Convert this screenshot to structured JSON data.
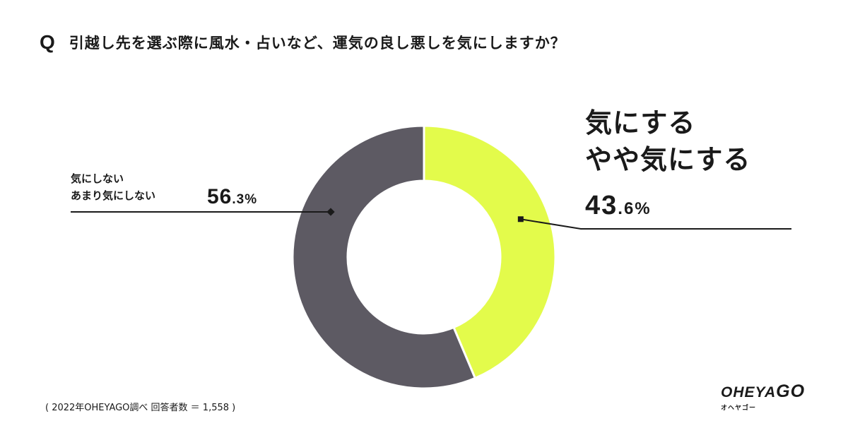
{
  "question": {
    "mark": "Q",
    "text": "引越し先を選ぶ際に風水・占いなど、運気の良し悪しを気にしますか？"
  },
  "chart_data": {
    "type": "pie",
    "slices": [
      {
        "label_lines": [
          "気にする",
          "やや気にする"
        ],
        "value": 43.6,
        "pct_int": "43",
        "pct_dec": ".6%",
        "color": "#e3fb4b"
      },
      {
        "label_lines": [
          "気にしない",
          "あまり気にしない"
        ],
        "value": 56.3,
        "pct_int": "56",
        "pct_dec": ".3%",
        "color": "#5d5a63"
      }
    ]
  },
  "source": "( 2022年OHEYAGO調べ 回答者数 ＝ 1,558 )",
  "logo": {
    "main": "OHEYA",
    "main_go": "GO",
    "sub": "オヘヤゴー"
  },
  "colors": {
    "text": "#1a1a1a",
    "accent": "#e3fb4b",
    "dark_slice": "#5d5a63",
    "background": "#ffffff"
  }
}
